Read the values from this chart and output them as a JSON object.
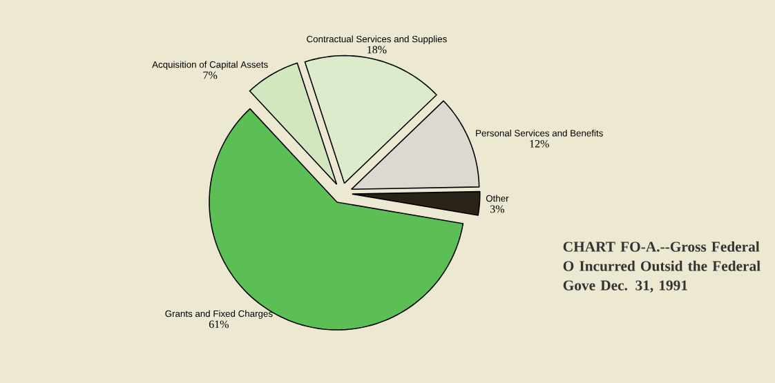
{
  "chart_data": {
    "type": "pie",
    "title": "CHART FO-A.--Gross Federal O Incurred Outsid the Federal Gove Dec. 31, 1991",
    "categories": [
      "Contractual Services and Supplies",
      "Personal Services and Benefits",
      "Other",
      "Grants and Fixed Charges",
      "Acquisition of Capital Assets"
    ],
    "values": [
      18,
      12,
      3,
      61,
      7
    ],
    "value_labels": [
      "18%",
      "12%",
      "3%",
      "61%",
      "7%"
    ],
    "colors": [
      "#dcebcc",
      "#dcdad0",
      "#2a2418",
      "#5bbf55",
      "#d2e6c0"
    ]
  }
}
